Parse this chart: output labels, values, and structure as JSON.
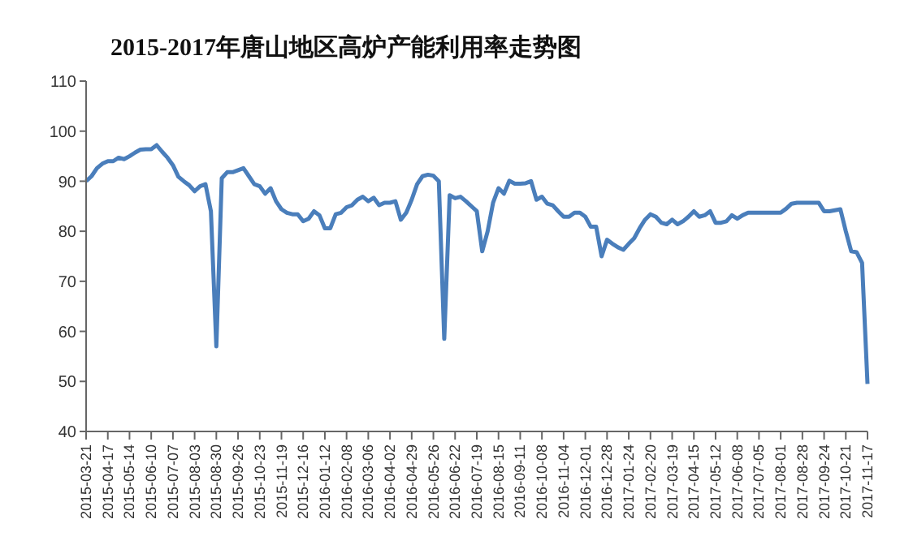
{
  "chart_data": {
    "type": "line",
    "title": "2015-2017年唐山地区高炉产能利用率走势图",
    "categories": [
      "2015-03-21",
      null,
      null,
      null,
      "2015-04-17",
      null,
      null,
      null,
      "2015-05-14",
      null,
      null,
      null,
      "2015-06-10",
      null,
      null,
      null,
      "2015-07-07",
      null,
      null,
      null,
      "2015-08-03",
      null,
      null,
      null,
      "2015-08-30",
      null,
      null,
      null,
      "2015-09-26",
      null,
      null,
      null,
      "2015-10-23",
      null,
      null,
      null,
      "2015-11-19",
      null,
      null,
      null,
      "2015-12-16",
      null,
      null,
      null,
      "2016-01-12",
      null,
      null,
      null,
      "2016-02-08",
      null,
      null,
      null,
      "2016-03-06",
      null,
      null,
      null,
      "2016-04-02",
      null,
      null,
      null,
      "2016-04-29",
      null,
      null,
      null,
      "2016-05-26",
      null,
      null,
      null,
      "2016-06-22",
      null,
      null,
      null,
      "2016-07-19",
      null,
      null,
      null,
      "2016-08-15",
      null,
      null,
      null,
      "2016-09-11",
      null,
      null,
      null,
      "2016-10-08",
      null,
      null,
      null,
      "2016-11-04",
      null,
      null,
      null,
      "2016-12-01",
      null,
      null,
      null,
      "2016-12-28",
      null,
      null,
      null,
      "2017-01-24",
      null,
      null,
      null,
      "2017-02-20",
      null,
      null,
      null,
      "2017-03-19",
      null,
      null,
      null,
      "2017-04-15",
      null,
      null,
      null,
      "2017-05-12",
      null,
      null,
      null,
      "2017-06-08",
      null,
      null,
      null,
      "2017-07-05",
      null,
      null,
      null,
      "2017-08-01",
      null,
      null,
      null,
      "2017-08-28",
      null,
      null,
      null,
      "2017-09-24",
      null,
      null,
      null,
      "2017-10-21",
      null,
      null,
      null,
      "2017-11-17"
    ],
    "series": [
      {
        "color": "#4a7ebb",
        "values": [
          90,
          91,
          92.6,
          93.5,
          94,
          94,
          94.7,
          94.4,
          95,
          95.7,
          96.3,
          96.4,
          96.4,
          97.2,
          95.9,
          94.7,
          93.2,
          90.9,
          90,
          89.2,
          88,
          89,
          89.4,
          84,
          57,
          90.6,
          91.8,
          91.8,
          92.2,
          92.6,
          91,
          89.4,
          89,
          87.5,
          88.6,
          86,
          84.4,
          83.7,
          83.4,
          83.4,
          82,
          82.5,
          84,
          83.2,
          80.6,
          80.6,
          83.4,
          83.7,
          84.8,
          85.2,
          86.3,
          86.9,
          86,
          86.7,
          85.2,
          85.7,
          85.7,
          86,
          82.3,
          83.7,
          86.3,
          89.4,
          91,
          91.3,
          91.1,
          90,
          58.5,
          87.2,
          86.6,
          86.9,
          86,
          85,
          84,
          76,
          80,
          85.7,
          88.6,
          87.5,
          90.1,
          89.5,
          89.5,
          89.6,
          90,
          86.3,
          86.9,
          85.5,
          85.2,
          84,
          82.9,
          82.9,
          83.7,
          83.7,
          82.9,
          80.9,
          80.9,
          75,
          78.3,
          77.5,
          76.8,
          76.3,
          77.5,
          78.6,
          80.6,
          82.3,
          83.4,
          82.9,
          81.7,
          81.4,
          82.3,
          81.4,
          82,
          82.9,
          84,
          82.9,
          83.2,
          84,
          81.7,
          81.7,
          82,
          83.2,
          82.5,
          83.2,
          83.7,
          83.7,
          83.7,
          83.7,
          83.7,
          83.7,
          83.7,
          84.5,
          85.5,
          85.7,
          85.7,
          85.7,
          85.7,
          85.7,
          84,
          84,
          84.2,
          84.4,
          80,
          76,
          75.8,
          73.7,
          49.5
        ]
      }
    ],
    "ylim": [
      40,
      110
    ],
    "yticks": [
      40,
      50,
      60,
      70,
      80,
      90,
      100,
      110
    ],
    "grid": false,
    "legend": false,
    "marker": "none",
    "line_style": "solid"
  }
}
